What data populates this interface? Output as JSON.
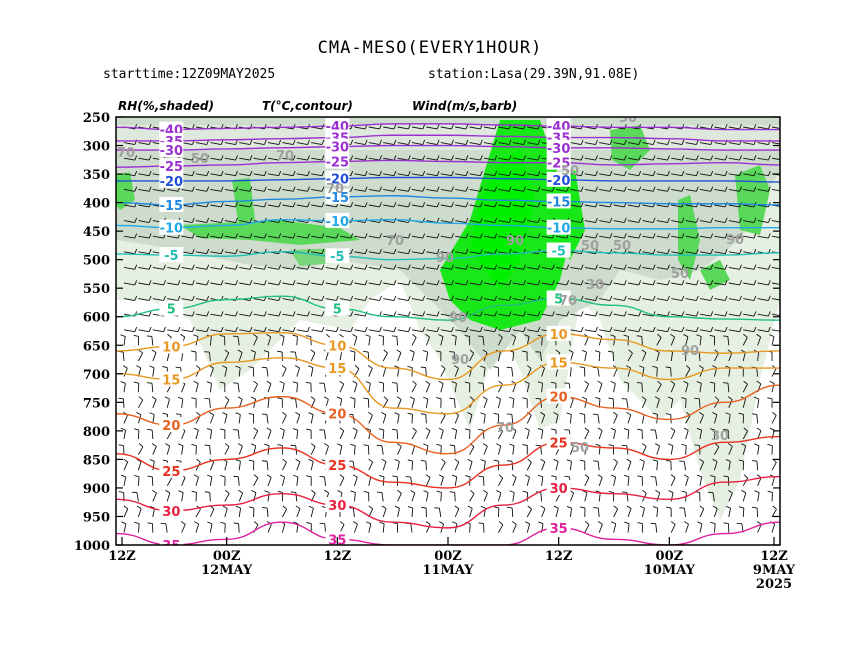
{
  "chart_data": {
    "type": "time-height cross-section",
    "title": "CMA-MESO(EVERY1HOUR)",
    "subtitle_left": "starttime:12Z09MAY2025",
    "subtitle_right": "station:Lasa(29.39N,91.08E)",
    "legend": {
      "rh": "RH(%,shaded)",
      "temp": "T(°C,contour)",
      "wind": "Wind(m/s,barb)"
    },
    "y_axis": {
      "scale": "pressure (reversed)",
      "ylim": [
        1000,
        250
      ],
      "ticks": [
        250,
        300,
        350,
        400,
        450,
        500,
        550,
        600,
        650,
        700,
        750,
        800,
        850,
        900,
        950,
        1000
      ]
    },
    "x_axis": {
      "direction": "time decreasing left to right",
      "ticks": [
        {
          "label": "12Z",
          "date": ""
        },
        {
          "label": "00Z",
          "date": "12MAY"
        },
        {
          "label": "12Z",
          "date": ""
        },
        {
          "label": "00Z",
          "date": "11MAY"
        },
        {
          "label": "12Z",
          "date": ""
        },
        {
          "label": "00Z",
          "date": "10MAY"
        },
        {
          "label": "12Z",
          "date": "9MAY",
          "year": "2025"
        }
      ]
    },
    "temperature_contours": [
      {
        "t": -40,
        "color": "#9b30d0",
        "label": "-40",
        "p": [
          268,
          272,
          270,
          268,
          266,
          262,
          262,
          264,
          266,
          268,
          268,
          272,
          272
        ]
      },
      {
        "t": -35,
        "color": "#9b30d0",
        "label": "-35",
        "p": [
          292,
          292,
          290,
          288,
          286,
          282,
          282,
          284,
          286,
          286,
          288,
          292,
          292
        ]
      },
      {
        "t": -30,
        "color": "#9b30d0",
        "label": "-30",
        "p": [
          308,
          308,
          306,
          304,
          302,
          300,
          300,
          302,
          304,
          304,
          306,
          308,
          308
        ]
      },
      {
        "t": -25,
        "color": "#9b30d0",
        "label": "-25",
        "p": [
          338,
          336,
          334,
          330,
          328,
          326,
          328,
          330,
          330,
          334,
          332,
          330,
          334
        ]
      },
      {
        "t": -20,
        "color": "#2050d8",
        "label": "-20",
        "p": [
          362,
          362,
          362,
          360,
          358,
          356,
          356,
          358,
          360,
          362,
          362,
          362,
          364
        ]
      },
      {
        "t": -15,
        "color": "#2088e0",
        "label": "-15",
        "p": [
          400,
          404,
          398,
          394,
          390,
          388,
          392,
          396,
          398,
          400,
          402,
          402,
          404
        ]
      },
      {
        "t": -10,
        "color": "#20a8e8",
        "label": "-10",
        "p": [
          440,
          444,
          440,
          430,
          432,
          430,
          436,
          440,
          444,
          446,
          446,
          444,
          444
        ]
      },
      {
        "t": -5,
        "color": "#20c0b8",
        "label": "-5",
        "p": [
          490,
          492,
          494,
          486,
          494,
          500,
          498,
          490,
          484,
          488,
          492,
          492,
          488
        ]
      },
      {
        "t": 5,
        "color": "#20c080",
        "label": "5",
        "p": [
          600,
          586,
          570,
          564,
          586,
          600,
          606,
          580,
          568,
          580,
          600,
          604,
          606
        ]
      },
      {
        "t": 10,
        "color": "#e89820",
        "label": "10",
        "p": [
          660,
          652,
          630,
          628,
          650,
          690,
          710,
          660,
          630,
          640,
          660,
          664,
          660
        ]
      },
      {
        "t": 15,
        "color": "#e89820",
        "label": "15",
        "p": [
          700,
          710,
          680,
          672,
          690,
          760,
          770,
          720,
          680,
          690,
          710,
          690,
          690
        ]
      },
      {
        "t": 20,
        "color": "#e86020",
        "label": "20",
        "p": [
          770,
          790,
          760,
          740,
          770,
          820,
          840,
          790,
          740,
          760,
          780,
          750,
          720
        ]
      },
      {
        "t": 25,
        "color": "#e83020",
        "label": "25",
        "p": [
          840,
          870,
          850,
          830,
          860,
          890,
          900,
          860,
          820,
          830,
          850,
          820,
          810
        ]
      },
      {
        "t": 30,
        "color": "#e82040",
        "label": "30",
        "p": [
          920,
          940,
          930,
          910,
          930,
          960,
          970,
          930,
          900,
          910,
          920,
          890,
          880
        ]
      },
      {
        "t": 35,
        "color": "#e020a0",
        "label": "35",
        "p": [
          980,
          1000,
          990,
          960,
          990,
          1000,
          1000,
          1000,
          970,
          990,
          1000,
          980,
          960
        ]
      }
    ],
    "rh_labels": [
      "70",
      "50",
      "70",
      "50",
      "70",
      "70",
      "70",
      "90",
      "90",
      "90",
      "50",
      "30",
      "30",
      "50",
      "90",
      "70",
      "90",
      "50",
      "90",
      "30",
      "50"
    ],
    "notes": "RH shaded: light grey-green ≥50%, mid green ≥70%, bright green ≥90%. Wind barbs plotted throughout."
  }
}
